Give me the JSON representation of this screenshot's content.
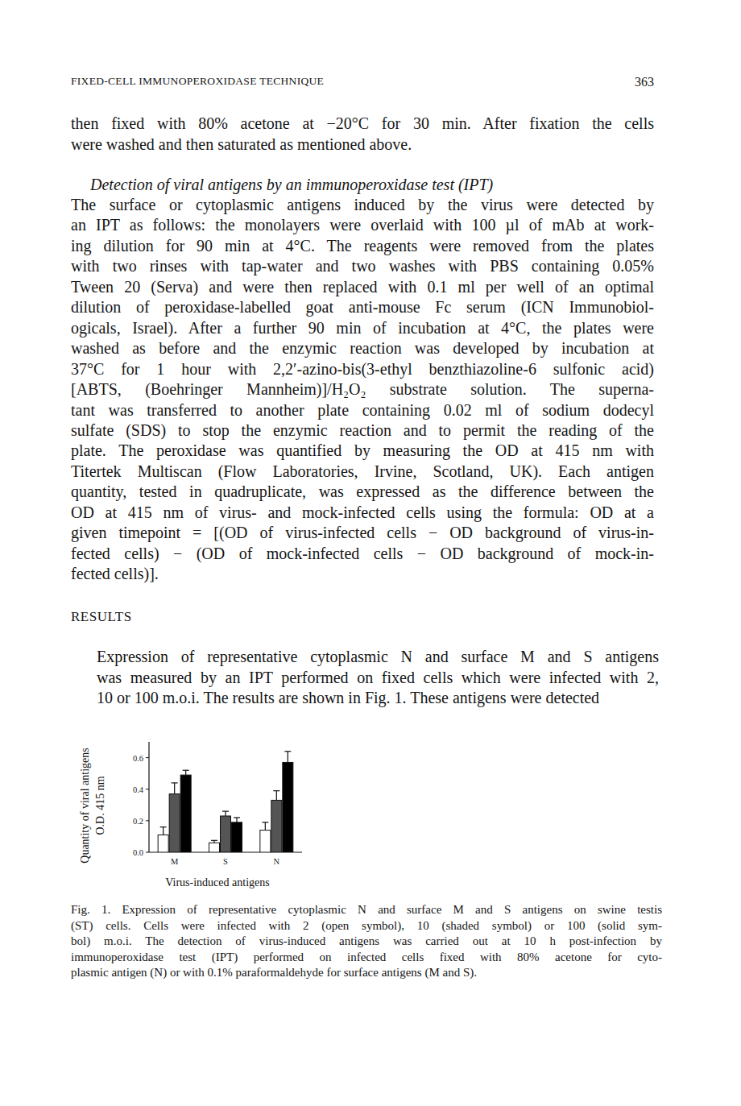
{
  "header": {
    "running_title": "FIXED-CELL IMMUNOPEROXIDASE TECHNIQUE",
    "page_number": "363"
  },
  "paragraph_1": {
    "lines": [
      "then fixed with 80% acetone at −20°C for 30 min. After fixation the cells",
      "were washed and then saturated as mentioned above."
    ]
  },
  "heading": "Detection of viral antigens by an immunoperoxidase test (IPT)",
  "paragraph_2": {
    "lines": [
      "The surface or cytoplasmic antigens induced by the virus were detected by",
      "an IPT as follows: the monolayers were overlaid with 100 µl of mAb at work-",
      "ing dilution for 90 min at 4°C. The reagents were removed from the plates",
      "with two rinses with tap-water and two washes with PBS containing 0.05%",
      "Tween 20 (Serva) and were then replaced with 0.1 ml per well of an optimal",
      "dilution of peroxidase-labelled goat anti-mouse Fc serum (ICN Immunobiol-",
      "ogicals, Israel). After a further 90 min of incubation at 4°C, the plates were",
      "washed as before and the enzymic reaction was developed by incubation at",
      "37°C for 1 hour with 2,2′-azino-bis(3-ethyl benzthiazoline-6 sulfonic acid)",
      "[ABTS, (Boehringer Mannheim)]/H₂O₂ substrate solution. The superna-",
      "tant was transferred to another plate containing 0.02 ml of sodium dodecyl",
      "sulfate (SDS) to stop the enzymic reaction and to permit the reading of the",
      "plate. The peroxidase was quantified by measuring the OD at 415 nm with",
      "Titertek Multiscan (Flow Laboratories, Irvine, Scotland, UK). Each antigen",
      "quantity, tested in quadruplicate, was expressed as the difference between the",
      "OD at 415 nm of virus- and mock-infected cells using the formula: OD at a",
      "given timepoint = [(OD of virus-infected cells − OD background of virus-in-",
      "fected cells) − (OD of mock-infected cells − OD background of mock-in-",
      "fected cells)]."
    ]
  },
  "section_heading": "RESULTS",
  "paragraph_3": {
    "lines": [
      "Expression of representative cytoplasmic N and surface M and S antigens",
      "was measured by an IPT performed on fixed cells which were infected with 2,",
      "10 or 100 m.o.i. The results are shown in Fig. 1. These antigens were detected"
    ]
  },
  "chart_data": {
    "type": "bar",
    "categories": [
      "M",
      "S",
      "N"
    ],
    "series": [
      {
        "color": "#ffffff",
        "values": [
          0.11,
          0.06,
          0.14
        ],
        "errors": [
          0.05,
          0.015,
          0.05
        ]
      },
      {
        "color": "#555555",
        "values": [
          0.37,
          0.23,
          0.33
        ],
        "errors": [
          0.07,
          0.03,
          0.06
        ]
      },
      {
        "color": "#000000",
        "values": [
          0.49,
          0.19,
          0.57
        ],
        "errors": [
          0.03,
          0.03,
          0.07
        ]
      }
    ],
    "xlabel": "Virus-induced antigens",
    "ylabel": [
      "Quantity of viral antigens",
      "O.D. 415 nm"
    ],
    "ylim": [
      0,
      0.7
    ],
    "yticks": [
      {
        "value": 0,
        "label": "0.0"
      },
      0.2,
      0.4,
      0.6
    ],
    "grid": false
  },
  "caption": {
    "lines": [
      "Fig. 1. Expression of representative cytoplasmic N and surface M and S antigens on swine testis",
      "(ST) cells. Cells were infected with 2 (open symbol), 10 (shaded symbol) or 100 (solid sym-",
      "bol) m.o.i. The detection of virus-induced antigens was carried out at 10 h post-infection by",
      "immunoperoxidase test (IPT) performed on infected cells fixed with 80% acetone for cyto-",
      "plasmic antigen (N) or with 0.1% paraformaldehyde for surface antigens (M and S)."
    ]
  }
}
